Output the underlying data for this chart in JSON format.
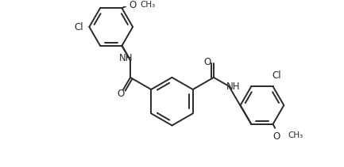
{
  "background_color": "#ffffff",
  "line_color": "#2a2a2a",
  "line_width": 1.4,
  "font_size": 8.5,
  "fig_width": 4.33,
  "fig_height": 2.11,
  "dpi": 100,
  "xlim": [
    0,
    10.0
  ],
  "ylim": [
    0,
    4.8
  ]
}
